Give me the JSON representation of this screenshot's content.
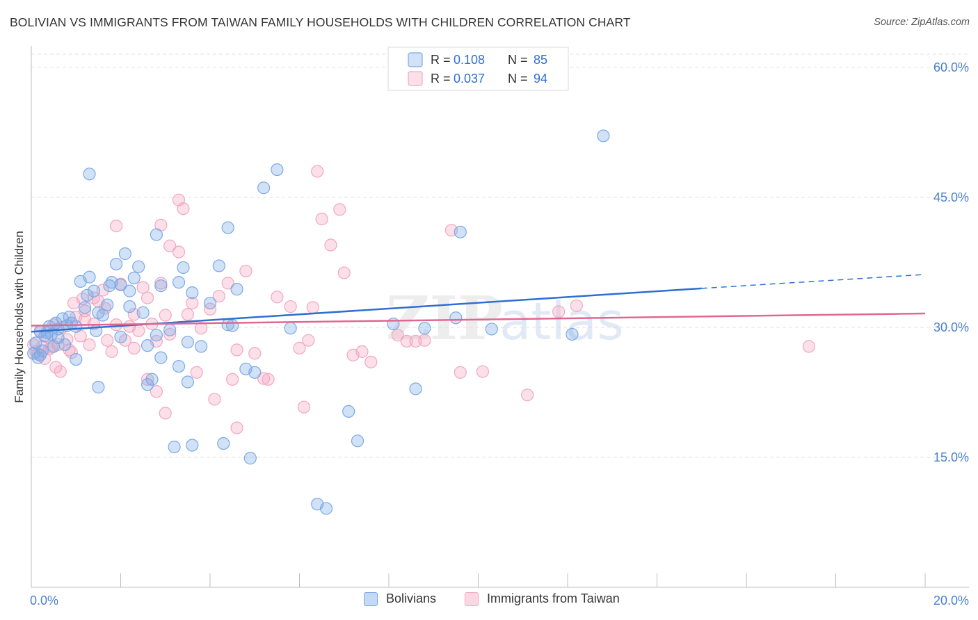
{
  "title": "BOLIVIAN VS IMMIGRANTS FROM TAIWAN FAMILY HOUSEHOLDS WITH CHILDREN CORRELATION CHART",
  "source": "Source: ZipAtlas.com",
  "watermark": {
    "zip": "ZIP",
    "atlas": "atlas"
  },
  "legend": {
    "r_label": "R =",
    "n_label": "N =",
    "rows": [
      {
        "r": "0.108",
        "n": "85"
      },
      {
        "r": "0.037",
        "n": "94"
      }
    ]
  },
  "chart_data": {
    "type": "scatter",
    "title": "BOLIVIAN VS IMMIGRANTS FROM TAIWAN FAMILY HOUSEHOLDS WITH CHILDREN CORRELATION CHART",
    "xlabel": "",
    "ylabel": "Family Households with Children",
    "xlim": [
      0,
      20
    ],
    "ylim": [
      0,
      62
    ],
    "x_tick_labels": [
      "0.0%",
      "20.0%"
    ],
    "y_ticks": [
      15,
      30,
      45,
      60
    ],
    "y_tick_labels": [
      "15.0%",
      "30.0%",
      "45.0%",
      "60.0%"
    ],
    "grid": true,
    "legend_placement": "top-center",
    "series": [
      {
        "name": "Bolivians",
        "color": "#7aaae6",
        "line_color": "#2e6fd1",
        "trend": {
          "x0": 0.0,
          "y0": 29.5,
          "x1": 15.0,
          "y1": 34.5,
          "x_dash_end": 20.0,
          "y_dash_end": 36.1
        },
        "points": [
          [
            0.05,
            27.0
          ],
          [
            0.1,
            28.2
          ],
          [
            0.15,
            26.5
          ],
          [
            0.2,
            26.8
          ],
          [
            0.25,
            27.3
          ],
          [
            0.3,
            29.0
          ],
          [
            0.35,
            29.4
          ],
          [
            0.4,
            30.1
          ],
          [
            0.45,
            29.2
          ],
          [
            0.5,
            27.8
          ],
          [
            0.55,
            30.5
          ],
          [
            0.6,
            29.8
          ],
          [
            0.7,
            31.0
          ],
          [
            0.75,
            28.0
          ],
          [
            0.8,
            30.2
          ],
          [
            0.85,
            31.2
          ],
          [
            0.9,
            30.5
          ],
          [
            1.0,
            26.3
          ],
          [
            1.1,
            35.3
          ],
          [
            1.2,
            32.3
          ],
          [
            1.25,
            33.7
          ],
          [
            1.3,
            35.8
          ],
          [
            1.4,
            34.2
          ],
          [
            1.45,
            29.6
          ],
          [
            1.5,
            31.7
          ],
          [
            1.6,
            31.4
          ],
          [
            1.7,
            32.6
          ],
          [
            1.75,
            34.8
          ],
          [
            1.8,
            35.2
          ],
          [
            1.9,
            37.3
          ],
          [
            2.0,
            28.9
          ],
          [
            2.1,
            38.5
          ],
          [
            2.2,
            34.2
          ],
          [
            2.3,
            35.7
          ],
          [
            2.4,
            37.0
          ],
          [
            2.5,
            31.7
          ],
          [
            2.6,
            27.9
          ],
          [
            2.7,
            24.0
          ],
          [
            2.8,
            29.1
          ],
          [
            2.9,
            34.8
          ],
          [
            3.1,
            29.7
          ],
          [
            3.3,
            25.5
          ],
          [
            3.4,
            36.9
          ],
          [
            3.5,
            28.3
          ],
          [
            3.6,
            34.0
          ],
          [
            3.8,
            27.8
          ],
          [
            4.0,
            32.8
          ],
          [
            4.2,
            37.1
          ],
          [
            4.4,
            30.3
          ],
          [
            4.6,
            34.4
          ],
          [
            4.8,
            25.2
          ],
          [
            5.0,
            24.8
          ],
          [
            1.3,
            47.7
          ],
          [
            1.5,
            23.1
          ],
          [
            2.6,
            23.4
          ],
          [
            2.9,
            26.5
          ],
          [
            3.2,
            16.2
          ],
          [
            3.5,
            23.7
          ],
          [
            3.6,
            16.4
          ],
          [
            4.3,
            16.6
          ],
          [
            4.9,
            14.9
          ],
          [
            5.2,
            46.1
          ],
          [
            5.5,
            48.2
          ],
          [
            7.3,
            16.9
          ],
          [
            6.4,
            9.6
          ],
          [
            6.6,
            9.1
          ],
          [
            7.1,
            20.3
          ],
          [
            8.1,
            30.4
          ],
          [
            8.6,
            22.9
          ],
          [
            8.8,
            29.9
          ],
          [
            9.5,
            31.1
          ],
          [
            10.3,
            29.8
          ],
          [
            12.1,
            29.2
          ],
          [
            12.8,
            52.1
          ],
          [
            9.6,
            41.0
          ],
          [
            4.4,
            41.5
          ],
          [
            2.8,
            40.7
          ],
          [
            2.0,
            34.9
          ],
          [
            1.0,
            30.1
          ],
          [
            0.2,
            29.5
          ],
          [
            0.6,
            28.8
          ],
          [
            5.8,
            29.9
          ],
          [
            4.5,
            30.2
          ],
          [
            3.3,
            35.2
          ],
          [
            2.2,
            32.4
          ]
        ]
      },
      {
        "name": "Immigrants from Taiwan",
        "color": "#f3a6c0",
        "line_color": "#e06890",
        "trend": {
          "x0": 0.0,
          "y0": 30.2,
          "x1": 20.0,
          "y1": 31.6
        },
        "points": [
          [
            0.05,
            28.0
          ],
          [
            0.1,
            27.2
          ],
          [
            0.15,
            26.9
          ],
          [
            0.2,
            29.6
          ],
          [
            0.25,
            27.8
          ],
          [
            0.3,
            26.4
          ],
          [
            0.35,
            28.9
          ],
          [
            0.4,
            27.5
          ],
          [
            0.5,
            30.3
          ],
          [
            0.55,
            25.4
          ],
          [
            0.6,
            28.0
          ],
          [
            0.65,
            24.9
          ],
          [
            0.7,
            30.0
          ],
          [
            0.8,
            28.6
          ],
          [
            0.85,
            27.4
          ],
          [
            0.9,
            27.1
          ],
          [
            1.0,
            31.2
          ],
          [
            1.1,
            29.0
          ],
          [
            1.15,
            33.3
          ],
          [
            1.2,
            31.9
          ],
          [
            1.3,
            28.0
          ],
          [
            1.4,
            30.4
          ],
          [
            1.5,
            33.0
          ],
          [
            1.6,
            34.3
          ],
          [
            1.65,
            32.2
          ],
          [
            1.7,
            28.5
          ],
          [
            1.8,
            27.2
          ],
          [
            1.9,
            30.3
          ],
          [
            2.0,
            35.0
          ],
          [
            2.1,
            28.5
          ],
          [
            2.2,
            30.1
          ],
          [
            2.3,
            31.5
          ],
          [
            2.4,
            29.6
          ],
          [
            2.5,
            34.6
          ],
          [
            2.6,
            33.4
          ],
          [
            2.7,
            30.4
          ],
          [
            2.8,
            28.4
          ],
          [
            2.9,
            35.1
          ],
          [
            3.0,
            31.4
          ],
          [
            3.1,
            29.2
          ],
          [
            3.3,
            38.7
          ],
          [
            3.4,
            43.7
          ],
          [
            3.5,
            31.5
          ],
          [
            3.6,
            32.8
          ],
          [
            3.8,
            29.9
          ],
          [
            4.0,
            32.1
          ],
          [
            4.2,
            33.6
          ],
          [
            4.4,
            35.1
          ],
          [
            4.6,
            27.4
          ],
          [
            4.8,
            36.5
          ],
          [
            5.0,
            27.0
          ],
          [
            5.2,
            24.1
          ],
          [
            5.5,
            33.5
          ],
          [
            5.8,
            32.4
          ],
          [
            6.0,
            27.6
          ],
          [
            6.2,
            28.5
          ],
          [
            6.4,
            48.0
          ],
          [
            6.5,
            42.5
          ],
          [
            6.7,
            39.5
          ],
          [
            6.9,
            43.6
          ],
          [
            7.0,
            36.3
          ],
          [
            7.2,
            26.8
          ],
          [
            7.4,
            27.2
          ],
          [
            7.6,
            26.0
          ],
          [
            8.2,
            29.1
          ],
          [
            8.4,
            28.4
          ],
          [
            8.6,
            28.4
          ],
          [
            8.8,
            28.5
          ],
          [
            9.4,
            41.2
          ],
          [
            9.6,
            24.8
          ],
          [
            10.1,
            24.9
          ],
          [
            11.1,
            22.2
          ],
          [
            11.8,
            31.8
          ],
          [
            12.2,
            32.5
          ],
          [
            17.4,
            27.8
          ],
          [
            1.9,
            41.7
          ],
          [
            2.3,
            27.6
          ],
          [
            2.6,
            24.0
          ],
          [
            2.8,
            22.6
          ],
          [
            3.0,
            20.1
          ],
          [
            3.3,
            44.7
          ],
          [
            3.7,
            24.8
          ],
          [
            4.1,
            21.7
          ],
          [
            4.5,
            24.0
          ],
          [
            4.6,
            18.4
          ],
          [
            5.3,
            24.0
          ],
          [
            6.1,
            20.8
          ],
          [
            6.3,
            32.3
          ],
          [
            2.9,
            41.8
          ],
          [
            3.1,
            39.4
          ],
          [
            1.4,
            33.4
          ],
          [
            1.2,
            30.9
          ],
          [
            0.45,
            27.7
          ],
          [
            0.95,
            32.8
          ]
        ]
      }
    ]
  }
}
